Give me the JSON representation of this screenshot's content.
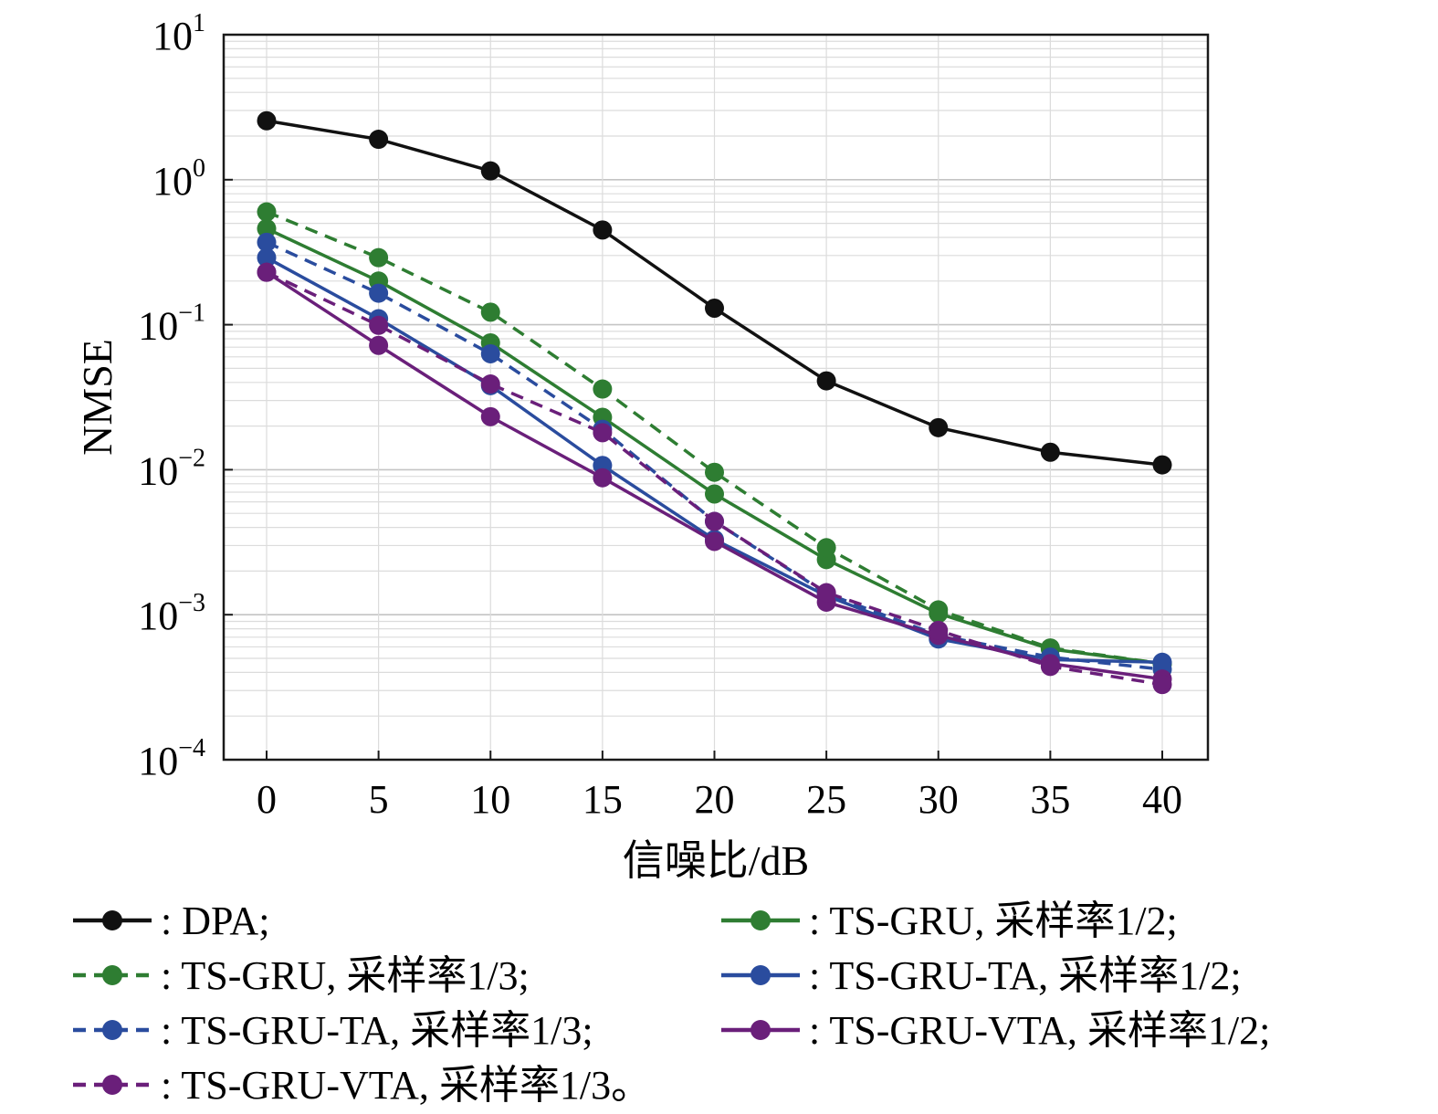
{
  "chart_data": {
    "type": "line",
    "xlabel": "信噪比/dB",
    "ylabel": "NMSE",
    "xlim": [
      -4,
      42
    ],
    "ylim": [
      0.0001,
      10
    ],
    "yscale": "log",
    "x": [
      0,
      5,
      10,
      15,
      20,
      25,
      30,
      35,
      40
    ],
    "xticks": [
      "0",
      "5",
      "10",
      "15",
      "20",
      "25",
      "30",
      "35",
      "40"
    ],
    "yticks": [
      {
        "base": "10",
        "exp": "1",
        "value": 10
      },
      {
        "base": "10",
        "exp": "0",
        "value": 1
      },
      {
        "base": "10",
        "exp": "−1",
        "value": 0.1
      },
      {
        "base": "10",
        "exp": "−2",
        "value": 0.01
      },
      {
        "base": "10",
        "exp": "−3",
        "value": 0.001
      },
      {
        "base": "10",
        "exp": "−4",
        "value": 0.0001
      }
    ],
    "grid": true,
    "legend_position": "bottom",
    "series": [
      {
        "name": ": DPA;",
        "color": "#111111",
        "dashed": false,
        "values": [
          2.55,
          1.9,
          1.15,
          0.45,
          0.13,
          0.041,
          0.0195,
          0.0132,
          0.0108
        ]
      },
      {
        "name": ": TS-GRU, 采样率1/2;",
        "color": "#2e7d32",
        "dashed": false,
        "values": [
          0.46,
          0.2,
          0.075,
          0.023,
          0.0068,
          0.0024,
          0.00102,
          0.00058,
          0.00046
        ]
      },
      {
        "name": ": TS-GRU, 采样率1/3;",
        "color": "#2e7d32",
        "dashed": true,
        "values": [
          0.6,
          0.29,
          0.122,
          0.036,
          0.0096,
          0.0029,
          0.00108,
          0.00059,
          0.00046
        ]
      },
      {
        "name": ": TS-GRU-TA, 采样率1/2;",
        "color": "#2a4c9e",
        "dashed": false,
        "values": [
          0.29,
          0.11,
          0.038,
          0.0107,
          0.0033,
          0.00135,
          0.00068,
          0.00049,
          0.00047
        ]
      },
      {
        "name": ": TS-GRU-TA, 采样率1/3;",
        "color": "#2a4c9e",
        "dashed": true,
        "values": [
          0.37,
          0.165,
          0.063,
          0.019,
          0.0044,
          0.0014,
          0.00072,
          0.00051,
          0.00042
        ]
      },
      {
        "name": ": TS-GRU-VTA, 采样率1/2;",
        "color": "#6a1f7a",
        "dashed": false,
        "values": [
          0.23,
          0.072,
          0.0232,
          0.0088,
          0.0032,
          0.00122,
          0.00072,
          0.00046,
          0.00036
        ]
      },
      {
        "name": ": TS-GRU-VTA, 采样率1/3。",
        "color": "#6a1f7a",
        "dashed": true,
        "values": [
          0.23,
          0.099,
          0.039,
          0.018,
          0.0044,
          0.00142,
          0.00078,
          0.00044,
          0.00033
        ]
      }
    ]
  }
}
